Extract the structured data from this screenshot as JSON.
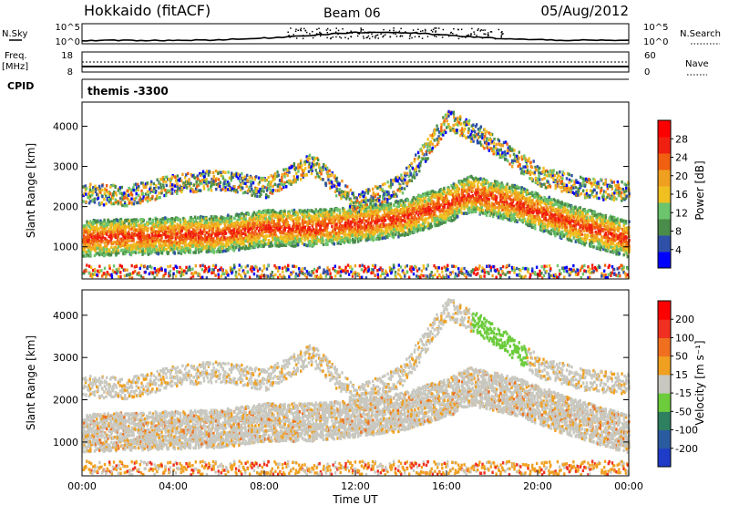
{
  "header": {
    "station": "Hokkaido (fitACF)",
    "beam": "Beam 06",
    "date": "05/Aug/2012"
  },
  "top_strips": {
    "nsky_label": "N.Sky",
    "nsky_ticks": [
      "10^5",
      "10^0"
    ],
    "nsearch_label": "N.Search",
    "nsearch_ticks": [
      "10^5",
      "10^0"
    ],
    "freq_label": "Freq.",
    "freq_unit": "[MHz]",
    "freq_ticks": [
      "18",
      "8"
    ],
    "nave_label": "Nave",
    "nave_ticks": [
      "60",
      "0"
    ],
    "cpid_label": "CPID",
    "cpid_value": "themis -3300"
  },
  "colors": {
    "power_scale": [
      "#0000ff",
      "#2f50a8",
      "#4a8c4a",
      "#6cc46c",
      "#f0c020",
      "#f0a020",
      "#f06010",
      "#f02010",
      "#ff0000"
    ],
    "velocity_scale": [
      "#1e3cc8",
      "#2a5aa0",
      "#2e8060",
      "#6ccc3c",
      "#c8c8c0",
      "#f0a020",
      "#f07020",
      "#f03020",
      "#ff0000"
    ]
  },
  "chart_data": [
    {
      "type": "heatmap",
      "panel": "power",
      "ylabel": "Slant Range [km]",
      "yticks": [
        1000,
        2000,
        3000,
        4000
      ],
      "ylim": [
        200,
        4600
      ],
      "xlim_hours": [
        0,
        24
      ],
      "colorbar": {
        "label": "Power [dB]",
        "ticks": [
          "28",
          "24",
          "20",
          "16",
          "12",
          "8",
          "4"
        ]
      }
    },
    {
      "type": "heatmap",
      "panel": "velocity",
      "ylabel": "Slant Range [km]",
      "yticks": [
        1000,
        2000,
        3000,
        4000
      ],
      "ylim": [
        200,
        4600
      ],
      "xlim_hours": [
        0,
        24
      ],
      "xticks": [
        "00:00",
        "04:00",
        "08:00",
        "12:00",
        "16:00",
        "20:00",
        "00:00"
      ],
      "xlabel": "Time UT",
      "colorbar": {
        "label": "Velocity [m s⁻¹]",
        "ticks": [
          "200",
          "100",
          "50",
          "15",
          "-15",
          "-50",
          "-100",
          "-200"
        ]
      }
    }
  ]
}
